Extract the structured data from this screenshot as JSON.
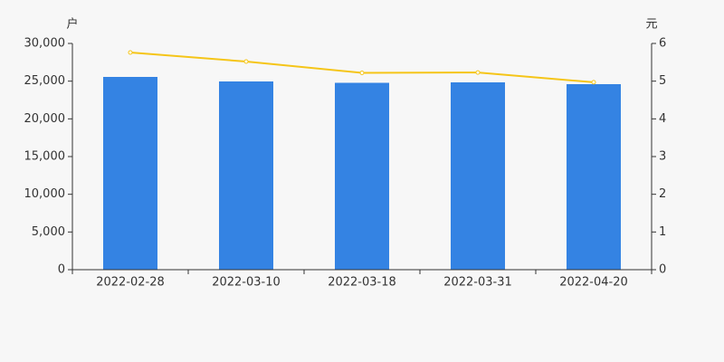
{
  "chart_data": {
    "type": "bar-line",
    "ylabel": "户",
    "y2label": "元",
    "categories": [
      "2022-02-28",
      "2022-03-10",
      "2022-03-18",
      "2022-03-31",
      "2022-04-20"
    ],
    "series": [
      {
        "type": "bar",
        "color": "#3483e3",
        "values": [
          25560,
          24960,
          24780,
          24840,
          24600
        ]
      },
      {
        "type": "line",
        "axis": "y2",
        "color": "#f5c518",
        "values": [
          5.76,
          5.52,
          5.22,
          5.23,
          4.97
        ]
      }
    ],
    "ylim": [
      0,
      30000
    ],
    "yticks": [
      0,
      {
        "value": 5000,
        "label": "5,000"
      },
      {
        "value": 10000,
        "label": "10,000"
      },
      {
        "value": 15000,
        "label": "15,000"
      },
      {
        "value": 20000,
        "label": "20,000"
      },
      {
        "value": 25000,
        "label": "25,000"
      },
      {
        "value": 30000,
        "label": "30,000"
      }
    ],
    "y2lim": [
      0,
      6
    ],
    "y2ticks": [
      0,
      1,
      2,
      3,
      4,
      5,
      6
    ]
  }
}
